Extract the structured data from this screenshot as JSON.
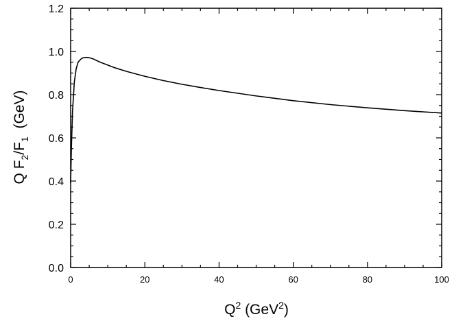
{
  "chart_data": {
    "type": "line",
    "title": "",
    "xlabel": {
      "base": "Q",
      "sup": "2",
      "rest_open": " (GeV",
      "rest_sup": "2",
      "rest_close": ")"
    },
    "ylabel": {
      "part1": "Q F",
      "sub1": "2",
      "part2": "/F",
      "sub2": "1",
      "part3": "  (GeV)"
    },
    "xlim": [
      0,
      100
    ],
    "ylim": [
      0,
      1.2
    ],
    "x_ticks": [
      "0",
      "20",
      "40",
      "60",
      "80",
      "100"
    ],
    "y_ticks": [
      "0.0",
      "0.2",
      "0.4",
      "0.6",
      "0.8",
      "1.0",
      "1.2"
    ],
    "grid": false,
    "series": [
      {
        "x": [
          0.0,
          0.2,
          0.5,
          1.0,
          1.5,
          2.0,
          2.5,
          3.0,
          3.5,
          4.0,
          4.5,
          5.0,
          6.0,
          7.0,
          8.0,
          10,
          12,
          15,
          20,
          25,
          30,
          35,
          40,
          50,
          60,
          70,
          80,
          90,
          100
        ],
        "y": [
          0.39,
          0.55,
          0.72,
          0.86,
          0.92,
          0.95,
          0.96,
          0.968,
          0.971,
          0.972,
          0.972,
          0.971,
          0.966,
          0.958,
          0.95,
          0.937,
          0.924,
          0.908,
          0.885,
          0.865,
          0.848,
          0.833,
          0.819,
          0.794,
          0.772,
          0.754,
          0.739,
          0.726,
          0.715
        ]
      }
    ]
  }
}
